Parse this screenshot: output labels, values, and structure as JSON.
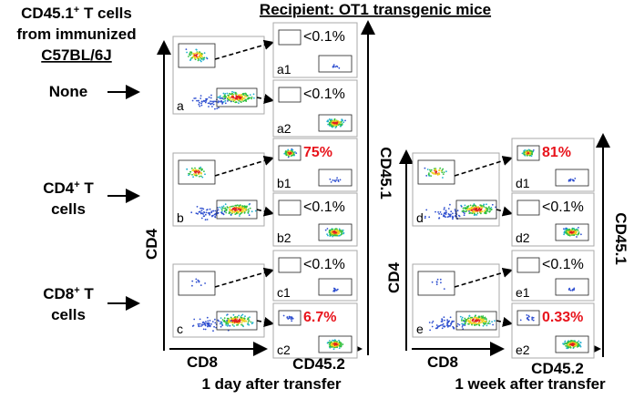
{
  "header": {
    "title": "Recipient: OT1 transgenic mice"
  },
  "donor_title": {
    "line1": {
      "text": "CD45.1",
      "sup": "+",
      "rest": " T cells"
    },
    "line2": "from immunized",
    "line3": "C57BL/6J"
  },
  "rows": [
    {
      "text": "None"
    },
    {
      "text": "CD4",
      "sup": "+",
      "rest": " T",
      "line2": "cells"
    },
    {
      "text": "CD8",
      "sup": "+",
      "rest": " T",
      "line2": "cells"
    }
  ],
  "panels": [
    {
      "label": "a"
    },
    {
      "label": "a1",
      "gate": "<0.1%"
    },
    {
      "label": "a2",
      "gate": "<0.1%"
    },
    {
      "label": "b"
    },
    {
      "label": "b1",
      "gate": "75%"
    },
    {
      "label": "b2",
      "gate": "<0.1%"
    },
    {
      "label": "c"
    },
    {
      "label": "c1",
      "gate": "<0.1%"
    },
    {
      "label": "c2",
      "gate": "6.7%"
    },
    {
      "label": "d"
    },
    {
      "label": "d1",
      "gate": "81%"
    },
    {
      "label": "d2",
      "gate": "<0.1%"
    },
    {
      "label": "e"
    },
    {
      "label": "e1",
      "gate": "<0.1%"
    },
    {
      "label": "e2",
      "gate": "0.33%"
    }
  ],
  "axes": {
    "day": {
      "y": "CD4",
      "x": "CD8",
      "sub_x": "CD45.2",
      "sub_y": "CD45.1"
    },
    "week": {
      "y": "CD4",
      "x": "CD8",
      "sub_x": "CD45.2",
      "sub_y": "CD45.1"
    }
  },
  "captions": {
    "day": "1 day after transfer",
    "week": "1 week after transfer"
  }
}
